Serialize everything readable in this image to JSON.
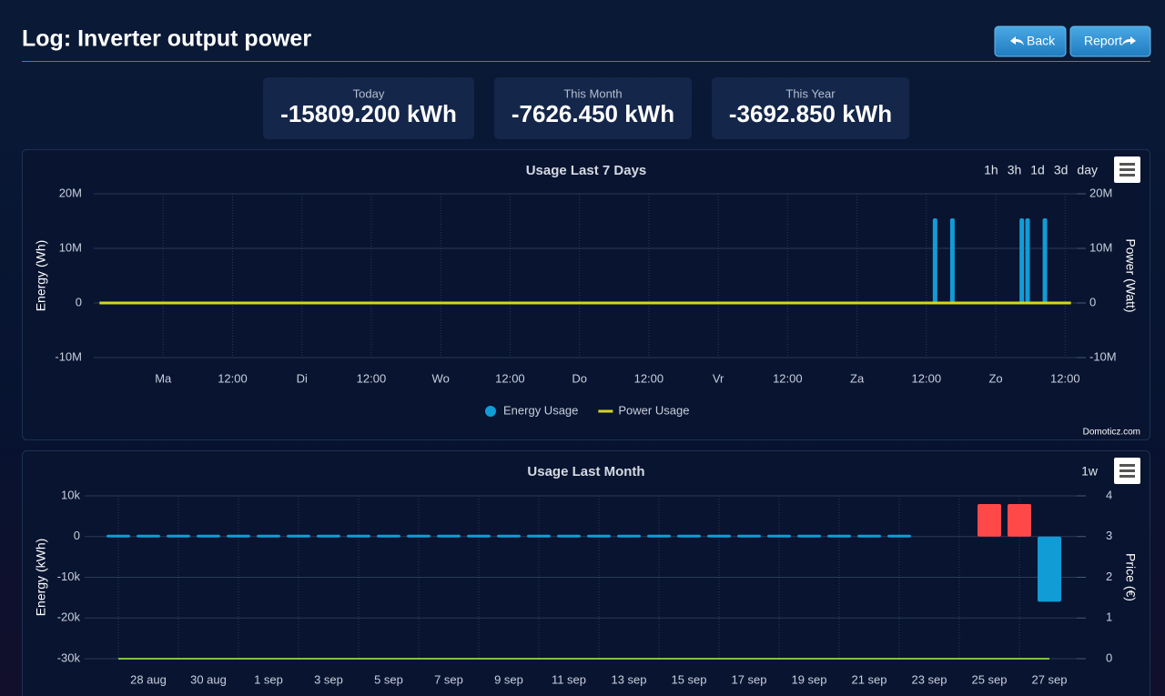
{
  "header": {
    "title": "Log: Inverter output power",
    "buttons": {
      "back": "Back",
      "report": "Report"
    }
  },
  "summary": [
    {
      "label": "Today",
      "value": "-15809.200 kWh"
    },
    {
      "label": "This Month",
      "value": "-7626.450 kWh"
    },
    {
      "label": "This Year",
      "value": "-3692.850 kWh"
    }
  ],
  "chart_data": [
    {
      "type": "bar",
      "title": "Usage Last 7 Days",
      "range_buttons": [
        "1h",
        "3h",
        "1d",
        "3d",
        "day"
      ],
      "ylabel": "Energy (Wh)",
      "y2label": "Power (Watt)",
      "credit": "Domoticz.com",
      "xlim": [
        -12,
        158
      ],
      "xticks": [
        {
          "value": 0,
          "label": "Ma"
        },
        {
          "value": 12,
          "label": "12:00"
        },
        {
          "value": 24,
          "label": "Di"
        },
        {
          "value": 36,
          "label": "12:00"
        },
        {
          "value": 48,
          "label": "Wo"
        },
        {
          "value": 60,
          "label": "12:00"
        },
        {
          "value": 72,
          "label": "Do"
        },
        {
          "value": 84,
          "label": "12:00"
        },
        {
          "value": 96,
          "label": "Vr"
        },
        {
          "value": 108,
          "label": "12:00"
        },
        {
          "value": 120,
          "label": "Za"
        },
        {
          "value": 132,
          "label": "12:00"
        },
        {
          "value": 144,
          "label": "Zo"
        },
        {
          "value": 156,
          "label": "12:00"
        }
      ],
      "ylim": [
        -10000000,
        20000000
      ],
      "yticks": [
        {
          "value": -10000000,
          "label": "-10M"
        },
        0,
        {
          "value": 10000000,
          "label": "10M"
        },
        {
          "value": 20000000,
          "label": "20M"
        }
      ],
      "y2lim": [
        -10000000,
        20000000
      ],
      "y2ticks": [
        {
          "value": -10000000,
          "label": "-10M"
        },
        0,
        {
          "value": 10000000,
          "label": "10M"
        },
        {
          "value": 20000000,
          "label": "20M"
        }
      ],
      "grid": true,
      "series": [
        {
          "name": "Energy Usage",
          "type": "bar",
          "color": "#119cd6",
          "x": [
            133.5,
            136.5,
            148.5,
            149.5,
            152.5
          ],
          "values": [
            15500000,
            15500000,
            15500000,
            15500000,
            15500000
          ]
        },
        {
          "name": "Power Usage",
          "type": "line",
          "axis": "y2",
          "color": "#d6d61e",
          "x": [
            -11,
            157
          ],
          "values": [
            0,
            0
          ]
        }
      ]
    },
    {
      "type": "bar",
      "title": "Usage Last Month",
      "range_buttons": [
        "1w"
      ],
      "ylabel": "Energy (kWh)",
      "y2label": "Price (€)",
      "categories": [
        null,
        "28 aug",
        null,
        "30 aug",
        null,
        "1 sep",
        null,
        "3 sep",
        null,
        "5 sep",
        null,
        "7 sep",
        null,
        "9 sep",
        null,
        "11 sep",
        null,
        "13 sep",
        null,
        "15 sep",
        null,
        "17 sep",
        null,
        "19 sep",
        null,
        "21 sep",
        null,
        "23 sep",
        null,
        "25 sep",
        null,
        "27 sep"
      ],
      "ylim": [
        -30000,
        10000
      ],
      "yticks": [
        {
          "value": -30000,
          "label": "-30k"
        },
        {
          "value": -20000,
          "label": "-20k"
        },
        {
          "value": -10000,
          "label": "-10k"
        },
        0,
        {
          "value": 10000,
          "label": "10k"
        }
      ],
      "y2lim": [
        0,
        4
      ],
      "y2ticks": [
        0,
        1,
        2,
        3,
        4
      ],
      "grid": true,
      "series": [
        {
          "type": "bar",
          "color": "#119cd6",
          "positive_color": "#ff4848",
          "values": [
            0,
            0,
            0,
            0,
            0,
            0,
            0,
            0,
            0,
            0,
            0,
            0,
            0,
            0,
            0,
            0,
            0,
            0,
            0,
            0,
            0,
            0,
            0,
            0,
            0,
            0,
            0,
            null,
            null,
            8000,
            8000,
            -16000
          ]
        },
        {
          "type": "line",
          "axis": "y2",
          "color": "#7cc242",
          "values": [
            0,
            0,
            0,
            0,
            0,
            0,
            0,
            0,
            0,
            0,
            0,
            0,
            0,
            0,
            0,
            0,
            0,
            0,
            0,
            0,
            0,
            0,
            0,
            0,
            0,
            0,
            0,
            0,
            0,
            0,
            0,
            0
          ]
        }
      ]
    }
  ]
}
